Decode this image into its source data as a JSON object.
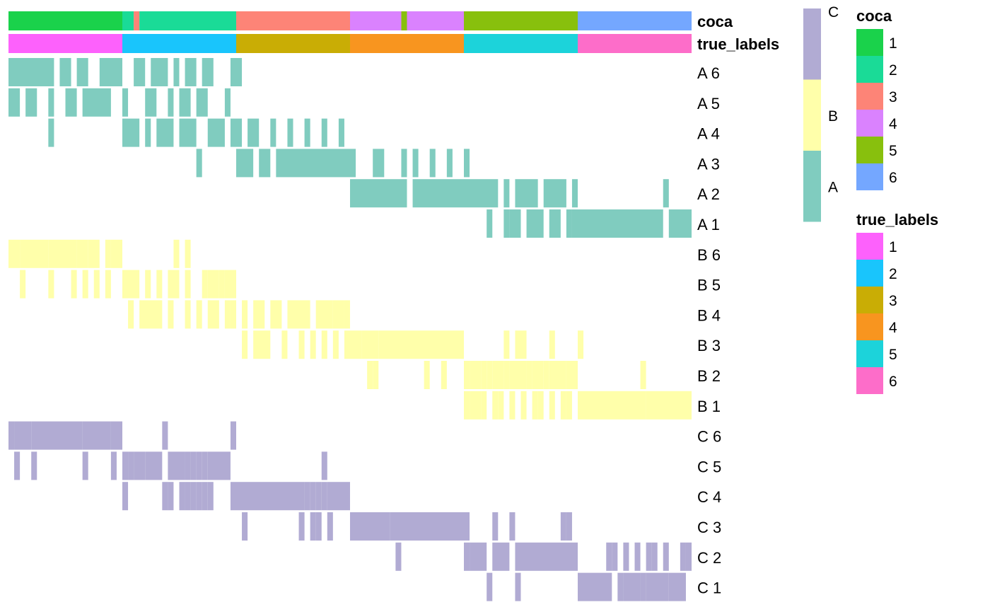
{
  "chart_data": {
    "type": "heatmap",
    "n_samples": 120,
    "annotations": [
      {
        "name": "coca",
        "values": [
          1,
          1,
          1,
          1,
          1,
          1,
          1,
          1,
          1,
          1,
          1,
          1,
          1,
          1,
          1,
          1,
          1,
          1,
          1,
          1,
          2,
          2,
          3,
          2,
          2,
          2,
          2,
          2,
          2,
          2,
          2,
          2,
          2,
          2,
          2,
          2,
          2,
          2,
          2,
          2,
          3,
          3,
          3,
          3,
          3,
          3,
          3,
          3,
          3,
          3,
          3,
          3,
          3,
          3,
          3,
          3,
          3,
          3,
          3,
          3,
          4,
          4,
          4,
          4,
          4,
          4,
          4,
          4,
          4,
          5,
          4,
          4,
          4,
          4,
          4,
          4,
          4,
          4,
          4,
          4,
          5,
          5,
          5,
          5,
          5,
          5,
          5,
          5,
          5,
          5,
          5,
          5,
          5,
          5,
          5,
          5,
          5,
          5,
          5,
          5,
          6,
          6,
          6,
          6,
          6,
          6,
          6,
          6,
          6,
          6,
          6,
          6,
          6,
          6,
          6,
          6,
          6,
          6,
          6,
          6
        ]
      },
      {
        "name": "true_labels",
        "values": [
          1,
          1,
          1,
          1,
          1,
          1,
          1,
          1,
          1,
          1,
          1,
          1,
          1,
          1,
          1,
          1,
          1,
          1,
          1,
          1,
          2,
          2,
          2,
          2,
          2,
          2,
          2,
          2,
          2,
          2,
          2,
          2,
          2,
          2,
          2,
          2,
          2,
          2,
          2,
          2,
          3,
          3,
          3,
          3,
          3,
          3,
          3,
          3,
          3,
          3,
          3,
          3,
          3,
          3,
          3,
          3,
          3,
          3,
          3,
          3,
          4,
          4,
          4,
          4,
          4,
          4,
          4,
          4,
          4,
          4,
          4,
          4,
          4,
          4,
          4,
          4,
          4,
          4,
          4,
          4,
          5,
          5,
          5,
          5,
          5,
          5,
          5,
          5,
          5,
          5,
          5,
          5,
          5,
          5,
          5,
          5,
          5,
          5,
          5,
          5,
          6,
          6,
          6,
          6,
          6,
          6,
          6,
          6,
          6,
          6,
          6,
          6,
          6,
          6,
          6,
          6,
          6,
          6,
          6,
          6
        ]
      }
    ],
    "rows": [
      {
        "label": "A 6",
        "group": "A",
        "cells": [
          [
            0,
            8
          ],
          [
            9,
            11
          ],
          [
            12,
            14
          ],
          [
            16,
            20
          ],
          [
            22,
            24
          ],
          [
            25,
            28
          ],
          [
            29,
            30
          ],
          [
            31,
            33
          ],
          [
            34,
            36
          ],
          [
            39,
            41
          ]
        ]
      },
      {
        "label": "A 5",
        "group": "A",
        "cells": [
          [
            0,
            2
          ],
          [
            3,
            5
          ],
          [
            7,
            8
          ],
          [
            10,
            12
          ],
          [
            13,
            18
          ],
          [
            20,
            21
          ],
          [
            24,
            26
          ],
          [
            28,
            29
          ],
          [
            30,
            32
          ],
          [
            33,
            35
          ],
          [
            38,
            39
          ]
        ]
      },
      {
        "label": "A 4",
        "group": "A",
        "cells": [
          [
            7,
            8
          ],
          [
            20,
            23
          ],
          [
            24,
            25
          ],
          [
            26,
            29
          ],
          [
            30,
            33
          ],
          [
            35,
            38
          ],
          [
            39,
            41
          ],
          [
            42,
            44
          ],
          [
            46,
            47
          ],
          [
            49,
            50
          ],
          [
            52,
            53
          ],
          [
            55,
            56
          ],
          [
            58,
            59
          ]
        ]
      },
      {
        "label": "A 3",
        "group": "A",
        "cells": [
          [
            33,
            34
          ],
          [
            40,
            43
          ],
          [
            44,
            46
          ],
          [
            47,
            61
          ],
          [
            64,
            66
          ],
          [
            69,
            70
          ],
          [
            71,
            72
          ],
          [
            74,
            75
          ],
          [
            77,
            78
          ],
          [
            80,
            81
          ]
        ]
      },
      {
        "label": "A 2",
        "group": "A",
        "cells": [
          [
            60,
            70
          ],
          [
            71,
            86
          ],
          [
            87,
            88
          ],
          [
            89,
            93
          ],
          [
            94,
            98
          ],
          [
            99,
            100
          ],
          [
            115,
            116
          ]
        ]
      },
      {
        "label": "A 1",
        "group": "A",
        "cells": [
          [
            84,
            85
          ],
          [
            87,
            88
          ],
          [
            88,
            90
          ],
          [
            91,
            94
          ],
          [
            95,
            97
          ],
          [
            98,
            99
          ],
          [
            99,
            100
          ],
          [
            100,
            115
          ],
          [
            116,
            120
          ]
        ]
      },
      {
        "label": "B 6",
        "group": "B",
        "cells": [
          [
            0,
            2
          ],
          [
            2,
            7
          ],
          [
            7,
            12
          ],
          [
            12,
            14
          ],
          [
            14,
            16
          ],
          [
            17,
            18
          ],
          [
            18,
            20
          ],
          [
            29,
            30
          ],
          [
            31,
            32
          ]
        ]
      },
      {
        "label": "B 5",
        "group": "B",
        "cells": [
          [
            2,
            3
          ],
          [
            7,
            8
          ],
          [
            11,
            12
          ],
          [
            13,
            14
          ],
          [
            15,
            16
          ],
          [
            17,
            18
          ],
          [
            20,
            23
          ],
          [
            24,
            25
          ],
          [
            26,
            27
          ],
          [
            28,
            30
          ],
          [
            31,
            32
          ],
          [
            34,
            35
          ],
          [
            35,
            37
          ],
          [
            37,
            38
          ],
          [
            38,
            40
          ]
        ]
      },
      {
        "label": "B 4",
        "group": "B",
        "cells": [
          [
            21,
            22
          ],
          [
            23,
            27
          ],
          [
            28,
            29
          ],
          [
            31,
            32
          ],
          [
            33,
            34
          ],
          [
            35,
            37
          ],
          [
            38,
            39
          ],
          [
            39,
            40
          ],
          [
            41,
            42
          ],
          [
            43,
            45
          ],
          [
            46,
            48
          ],
          [
            49,
            53
          ],
          [
            54,
            57
          ],
          [
            57,
            59
          ],
          [
            59,
            60
          ]
        ]
      },
      {
        "label": "B 3",
        "group": "B",
        "cells": [
          [
            41,
            42
          ],
          [
            43,
            46
          ],
          [
            48,
            49
          ],
          [
            51,
            52
          ],
          [
            53,
            54
          ],
          [
            55,
            56
          ],
          [
            57,
            58
          ],
          [
            59,
            62
          ],
          [
            62,
            65
          ],
          [
            65,
            80
          ],
          [
            87,
            88
          ],
          [
            89,
            91
          ],
          [
            95,
            96
          ],
          [
            100,
            101
          ]
        ]
      },
      {
        "label": "B 2",
        "group": "B",
        "cells": [
          [
            63,
            64
          ],
          [
            64,
            65
          ],
          [
            73,
            74
          ],
          [
            76,
            77
          ],
          [
            80,
            81
          ],
          [
            81,
            83
          ],
          [
            83,
            84
          ],
          [
            84,
            85
          ],
          [
            85,
            87
          ],
          [
            87,
            88
          ],
          [
            88,
            91
          ],
          [
            91,
            92
          ],
          [
            92,
            94
          ],
          [
            94,
            95
          ],
          [
            95,
            98
          ],
          [
            98,
            100
          ],
          [
            111,
            112
          ]
        ]
      },
      {
        "label": "B 1",
        "group": "B",
        "cells": [
          [
            80,
            81
          ],
          [
            81,
            83
          ],
          [
            83,
            84
          ],
          [
            85,
            86
          ],
          [
            86,
            87
          ],
          [
            88,
            89
          ],
          [
            90,
            91
          ],
          [
            92,
            93
          ],
          [
            93,
            94
          ],
          [
            95,
            96
          ],
          [
            97,
            98
          ],
          [
            98,
            99
          ],
          [
            100,
            112
          ],
          [
            112,
            120
          ]
        ]
      },
      {
        "label": "C 6",
        "group": "C",
        "cells": [
          [
            0,
            1
          ],
          [
            1,
            4
          ],
          [
            4,
            13
          ],
          [
            13,
            18
          ],
          [
            18,
            20
          ],
          [
            27,
            28
          ],
          [
            39,
            40
          ]
        ]
      },
      {
        "label": "C 5",
        "group": "C",
        "cells": [
          [
            1,
            2
          ],
          [
            4,
            5
          ],
          [
            13,
            14
          ],
          [
            18,
            19
          ],
          [
            20,
            21
          ],
          [
            21,
            22
          ],
          [
            22,
            24
          ],
          [
            24,
            27
          ],
          [
            28,
            31
          ],
          [
            31,
            32
          ],
          [
            32,
            33
          ],
          [
            33,
            34
          ],
          [
            34,
            35
          ],
          [
            35,
            39
          ],
          [
            55,
            56
          ]
        ]
      },
      {
        "label": "C 4",
        "group": "C",
        "cells": [
          [
            20,
            21
          ],
          [
            27,
            28
          ],
          [
            28,
            29
          ],
          [
            30,
            31
          ],
          [
            31,
            32
          ],
          [
            32,
            33
          ],
          [
            33,
            34
          ],
          [
            34,
            35
          ],
          [
            35,
            36
          ],
          [
            39,
            52
          ],
          [
            52,
            53
          ],
          [
            53,
            54
          ],
          [
            54,
            55
          ],
          [
            55,
            56
          ],
          [
            56,
            60
          ]
        ]
      },
      {
        "label": "C 3",
        "group": "C",
        "cells": [
          [
            41,
            42
          ],
          [
            51,
            52
          ],
          [
            53,
            54
          ],
          [
            54,
            55
          ],
          [
            56,
            57
          ],
          [
            60,
            67
          ],
          [
            67,
            80
          ],
          [
            80,
            81
          ],
          [
            85,
            86
          ],
          [
            88,
            89
          ],
          [
            97,
            98
          ],
          [
            98,
            99
          ]
        ]
      },
      {
        "label": "C 2",
        "group": "C",
        "cells": [
          [
            68,
            69
          ],
          [
            80,
            81
          ],
          [
            81,
            84
          ],
          [
            85,
            88
          ],
          [
            89,
            90
          ],
          [
            90,
            100
          ],
          [
            105,
            106
          ],
          [
            106,
            107
          ],
          [
            108,
            109
          ],
          [
            110,
            111
          ],
          [
            112,
            113
          ],
          [
            113,
            114
          ],
          [
            115,
            116
          ],
          [
            118,
            119
          ],
          [
            119,
            120
          ]
        ]
      },
      {
        "label": "C 1",
        "group": "C",
        "cells": [
          [
            84,
            85
          ],
          [
            89,
            90
          ],
          [
            100,
            106
          ],
          [
            107,
            108
          ],
          [
            108,
            110
          ],
          [
            110,
            111
          ],
          [
            111,
            112
          ],
          [
            112,
            116
          ],
          [
            116,
            119
          ]
        ]
      }
    ],
    "group_legend": {
      "labels": [
        "C",
        "B",
        "A"
      ],
      "colors": {
        "A": "#80ccbf",
        "B": "#ffffaa",
        "C": "#b1abd3"
      }
    },
    "legends": [
      {
        "title": "coca",
        "entries": [
          {
            "label": "1",
            "color": "#1ad24b"
          },
          {
            "label": "2",
            "color": "#1adb97"
          },
          {
            "label": "3",
            "color": "#fd8477"
          },
          {
            "label": "4",
            "color": "#da82fe"
          },
          {
            "label": "5",
            "color": "#88c00d"
          },
          {
            "label": "6",
            "color": "#74a7ff"
          }
        ]
      },
      {
        "title": "true_labels",
        "entries": [
          {
            "label": "1",
            "color": "#fd61fc"
          },
          {
            "label": "2",
            "color": "#19c5fc"
          },
          {
            "label": "3",
            "color": "#c9ad05"
          },
          {
            "label": "4",
            "color": "#f8951f"
          },
          {
            "label": "5",
            "color": "#1cd3da"
          },
          {
            "label": "6",
            "color": "#fd6dc9"
          }
        ]
      }
    ]
  }
}
